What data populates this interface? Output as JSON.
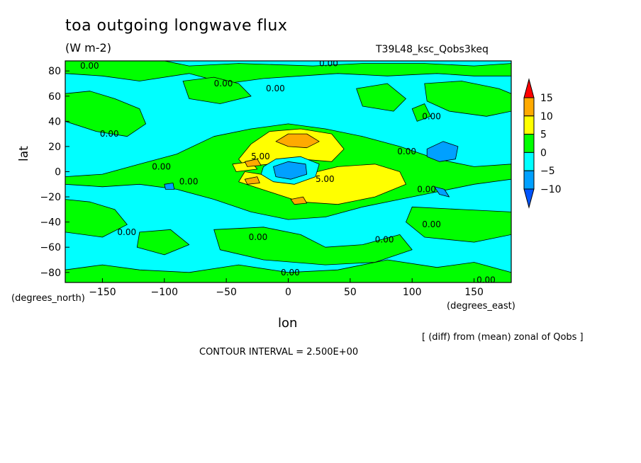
{
  "figure": {
    "title": "toa outgoing longwave flux",
    "units": "(W m-2)",
    "run_label": "T39L48_ksc_Qobs3keq",
    "xlabel": "lon",
    "xlabel_unit": "(degrees_east)",
    "ylabel": "lat",
    "ylabel_unit": "(degrees_north)",
    "difference_note": "[ (diff) from (mean) zonal of Qobs ]",
    "contour_interval": "CONTOUR INTERVAL = 2.500E+00"
  },
  "colors": {
    "background": "#00ffff",
    "band_0_5": "#00ff00",
    "band_5_10": "#ffff00",
    "band_10_15": "#ffaa00",
    "band_neg5_0": "#00ffff",
    "band_neg10_neg5": "#00a0ff",
    "below_neg10": "#0055ff",
    "above_15": "#ff0000",
    "contour": "#000000"
  },
  "chart_data": {
    "type": "heatmap",
    "subtype": "filled-contour",
    "xlim": [
      -180,
      180
    ],
    "ylim": [
      -88,
      88
    ],
    "xticks": [
      -150,
      -100,
      -50,
      0,
      50,
      100,
      150
    ],
    "yticks": [
      -80,
      -60,
      -40,
      -20,
      0,
      20,
      40,
      60,
      80
    ],
    "levels": [
      -10,
      -5,
      0,
      5,
      10,
      15
    ],
    "colorbar": {
      "labels": [
        "15",
        "10",
        "5",
        "0",
        "-5",
        "-10"
      ],
      "extend": "both"
    },
    "regions": [
      {
        "name": "green-nh-high",
        "level": "0_5",
        "points": [
          [
            -180,
            88
          ],
          [
            -100,
            88
          ],
          [
            -80,
            84
          ],
          [
            -40,
            86
          ],
          [
            20,
            84
          ],
          [
            60,
            86
          ],
          [
            110,
            86
          ],
          [
            150,
            84
          ],
          [
            180,
            86
          ],
          [
            180,
            76
          ],
          [
            150,
            76
          ],
          [
            120,
            78
          ],
          [
            80,
            76
          ],
          [
            40,
            78
          ],
          [
            10,
            76
          ],
          [
            -20,
            74
          ],
          [
            -50,
            70
          ],
          [
            -80,
            78
          ],
          [
            -120,
            72
          ],
          [
            -150,
            76
          ],
          [
            -180,
            78
          ]
        ]
      },
      {
        "name": "green-nh-patch-1",
        "level": "0_5",
        "points": [
          [
            -85,
            72
          ],
          [
            -60,
            75
          ],
          [
            -40,
            70
          ],
          [
            -30,
            60
          ],
          [
            -55,
            54
          ],
          [
            -80,
            58
          ]
        ]
      },
      {
        "name": "green-nh-patch-2",
        "level": "0_5",
        "points": [
          [
            -180,
            62
          ],
          [
            -160,
            64
          ],
          [
            -140,
            58
          ],
          [
            -120,
            50
          ],
          [
            -115,
            38
          ],
          [
            -130,
            28
          ],
          [
            -155,
            32
          ],
          [
            -180,
            40
          ]
        ]
      },
      {
        "name": "green-nh-patch-3",
        "level": "0_5",
        "points": [
          [
            55,
            66
          ],
          [
            80,
            70
          ],
          [
            95,
            58
          ],
          [
            85,
            48
          ],
          [
            60,
            52
          ]
        ]
      },
      {
        "name": "green-nh-patch-4",
        "level": "0_5",
        "points": [
          [
            110,
            70
          ],
          [
            140,
            72
          ],
          [
            170,
            66
          ],
          [
            180,
            62
          ],
          [
            180,
            48
          ],
          [
            160,
            44
          ],
          [
            130,
            48
          ],
          [
            112,
            56
          ]
        ]
      },
      {
        "name": "green-nh-patch-5",
        "level": "0_5",
        "points": [
          [
            100,
            50
          ],
          [
            110,
            54
          ],
          [
            115,
            44
          ],
          [
            104,
            40
          ]
        ]
      },
      {
        "name": "green-tropics",
        "level": "0_5",
        "points": [
          [
            -180,
            -4
          ],
          [
            -150,
            -2
          ],
          [
            -120,
            6
          ],
          [
            -90,
            14
          ],
          [
            -60,
            28
          ],
          [
            -30,
            34
          ],
          [
            0,
            38
          ],
          [
            30,
            34
          ],
          [
            60,
            28
          ],
          [
            90,
            20
          ],
          [
            120,
            10
          ],
          [
            150,
            4
          ],
          [
            180,
            6
          ],
          [
            180,
            -6
          ],
          [
            150,
            -10
          ],
          [
            120,
            -16
          ],
          [
            90,
            -22
          ],
          [
            60,
            -28
          ],
          [
            30,
            -36
          ],
          [
            0,
            -38
          ],
          [
            -30,
            -32
          ],
          [
            -60,
            -22
          ],
          [
            -90,
            -14
          ],
          [
            -120,
            -10
          ],
          [
            -150,
            -12
          ],
          [
            -180,
            -10
          ]
        ]
      },
      {
        "name": "green-sh-patch-1",
        "level": "0_5",
        "points": [
          [
            -180,
            -22
          ],
          [
            -160,
            -24
          ],
          [
            -140,
            -30
          ],
          [
            -130,
            -42
          ],
          [
            -150,
            -52
          ],
          [
            -180,
            -48
          ]
        ]
      },
      {
        "name": "green-sh-patch-2",
        "level": "0_5",
        "points": [
          [
            100,
            -28
          ],
          [
            140,
            -30
          ],
          [
            180,
            -32
          ],
          [
            180,
            -50
          ],
          [
            150,
            -56
          ],
          [
            110,
            -52
          ],
          [
            95,
            -40
          ]
        ]
      },
      {
        "name": "green-sh-patch-3",
        "level": "0_5",
        "points": [
          [
            -120,
            -48
          ],
          [
            -95,
            -46
          ],
          [
            -80,
            -58
          ],
          [
            -100,
            -66
          ],
          [
            -122,
            -60
          ]
        ]
      },
      {
        "name": "green-sh-patch-4",
        "level": "0_5",
        "points": [
          [
            -60,
            -46
          ],
          [
            -20,
            -44
          ],
          [
            10,
            -50
          ],
          [
            30,
            -60
          ],
          [
            60,
            -58
          ],
          [
            90,
            -50
          ],
          [
            100,
            -62
          ],
          [
            70,
            -72
          ],
          [
            30,
            -74
          ],
          [
            -20,
            -70
          ],
          [
            -55,
            -62
          ]
        ]
      },
      {
        "name": "green-sh-low",
        "level": "0_5",
        "points": [
          [
            -180,
            -88
          ],
          [
            180,
            -88
          ],
          [
            180,
            -80
          ],
          [
            150,
            -72
          ],
          [
            120,
            -76
          ],
          [
            80,
            -70
          ],
          [
            40,
            -78
          ],
          [
            0,
            -80
          ],
          [
            -40,
            -74
          ],
          [
            -80,
            -80
          ],
          [
            -120,
            -78
          ],
          [
            -150,
            -74
          ],
          [
            -180,
            -78
          ]
        ]
      },
      {
        "name": "yellow-north",
        "level": "5_10",
        "points": [
          [
            -40,
            10
          ],
          [
            -30,
            22
          ],
          [
            -15,
            32
          ],
          [
            10,
            34
          ],
          [
            35,
            30
          ],
          [
            45,
            18
          ],
          [
            35,
            8
          ],
          [
            10,
            10
          ],
          [
            -15,
            6
          ],
          [
            -35,
            4
          ]
        ]
      },
      {
        "name": "yellow-south",
        "level": "5_10",
        "points": [
          [
            -40,
            -8
          ],
          [
            -15,
            -16
          ],
          [
            10,
            -24
          ],
          [
            40,
            -26
          ],
          [
            70,
            -20
          ],
          [
            95,
            -10
          ],
          [
            90,
            0
          ],
          [
            70,
            6
          ],
          [
            40,
            4
          ],
          [
            15,
            -2
          ],
          [
            -10,
            -4
          ],
          [
            -35,
            0
          ]
        ]
      },
      {
        "name": "yellow-west-patch",
        "level": "5_10",
        "points": [
          [
            -45,
            6
          ],
          [
            -30,
            8
          ],
          [
            -25,
            2
          ],
          [
            -42,
            0
          ]
        ]
      },
      {
        "name": "orange-north",
        "level": "10_15",
        "points": [
          [
            -10,
            24
          ],
          [
            0,
            30
          ],
          [
            15,
            30
          ],
          [
            25,
            24
          ],
          [
            15,
            19
          ],
          [
            0,
            20
          ]
        ]
      },
      {
        "name": "orange-south",
        "level": "10_15",
        "points": [
          [
            2,
            -22
          ],
          [
            12,
            -20
          ],
          [
            15,
            -25
          ],
          [
            5,
            -26
          ]
        ]
      },
      {
        "name": "orange-west",
        "level": "10_15",
        "points": [
          [
            -35,
            8
          ],
          [
            -25,
            10
          ],
          [
            -22,
            5
          ],
          [
            -33,
            4
          ]
        ]
      },
      {
        "name": "orange-sw",
        "level": "10_15",
        "points": [
          [
            -35,
            -6
          ],
          [
            -25,
            -4
          ],
          [
            -23,
            -9
          ],
          [
            -33,
            -10
          ]
        ]
      },
      {
        "name": "cyan-center",
        "level": "neg5_0",
        "points": [
          [
            -20,
            4
          ],
          [
            -10,
            10
          ],
          [
            10,
            12
          ],
          [
            25,
            6
          ],
          [
            22,
            -4
          ],
          [
            5,
            -10
          ],
          [
            -12,
            -8
          ],
          [
            -22,
            -2
          ]
        ]
      },
      {
        "name": "blue-center",
        "level": "neg10_neg5",
        "points": [
          [
            -12,
            4
          ],
          [
            0,
            8
          ],
          [
            14,
            6
          ],
          [
            15,
            -2
          ],
          [
            2,
            -6
          ],
          [
            -10,
            -4
          ]
        ]
      },
      {
        "name": "blue-east-upper",
        "level": "neg10_neg5",
        "points": [
          [
            112,
            18
          ],
          [
            125,
            24
          ],
          [
            137,
            20
          ],
          [
            135,
            10
          ],
          [
            122,
            8
          ],
          [
            112,
            12
          ]
        ]
      },
      {
        "name": "blue-east-lower",
        "level": "neg10_neg5",
        "points": [
          [
            118,
            -12
          ],
          [
            126,
            -14
          ],
          [
            130,
            -20
          ],
          [
            122,
            -18
          ]
        ]
      },
      {
        "name": "blue-west",
        "level": "neg10_neg5",
        "points": [
          [
            -100,
            -10
          ],
          [
            -93,
            -9
          ],
          [
            -92,
            -14
          ],
          [
            -99,
            -14
          ]
        ]
      }
    ],
    "contour_labels": [
      {
        "text": "0.00",
        "lon": -168,
        "lat": 84
      },
      {
        "text": "0.00",
        "lon": 25,
        "lat": 86
      },
      {
        "text": "0.00",
        "lon": -60,
        "lat": 70
      },
      {
        "text": "0.00",
        "lon": -18,
        "lat": 66
      },
      {
        "text": "0.00",
        "lon": 108,
        "lat": 44
      },
      {
        "text": "0.00",
        "lon": -152,
        "lat": 30
      },
      {
        "text": "0.00",
        "lon": -110,
        "lat": 4
      },
      {
        "text": "0.00",
        "lon": 88,
        "lat": 16
      },
      {
        "text": "5.00",
        "lon": -30,
        "lat": 12
      },
      {
        "text": "5.00",
        "lon": 22,
        "lat": -6
      },
      {
        "text": "0.00",
        "lon": -88,
        "lat": -8
      },
      {
        "text": "0.00",
        "lon": 104,
        "lat": -14
      },
      {
        "text": "0.00",
        "lon": -138,
        "lat": -48
      },
      {
        "text": "0.00",
        "lon": -32,
        "lat": -52
      },
      {
        "text": "0.00",
        "lon": 70,
        "lat": -54
      },
      {
        "text": "0.00",
        "lon": 108,
        "lat": -42
      },
      {
        "text": "0.00",
        "lon": -6,
        "lat": -80
      },
      {
        "text": "0.00",
        "lon": 152,
        "lat": -86
      }
    ]
  }
}
